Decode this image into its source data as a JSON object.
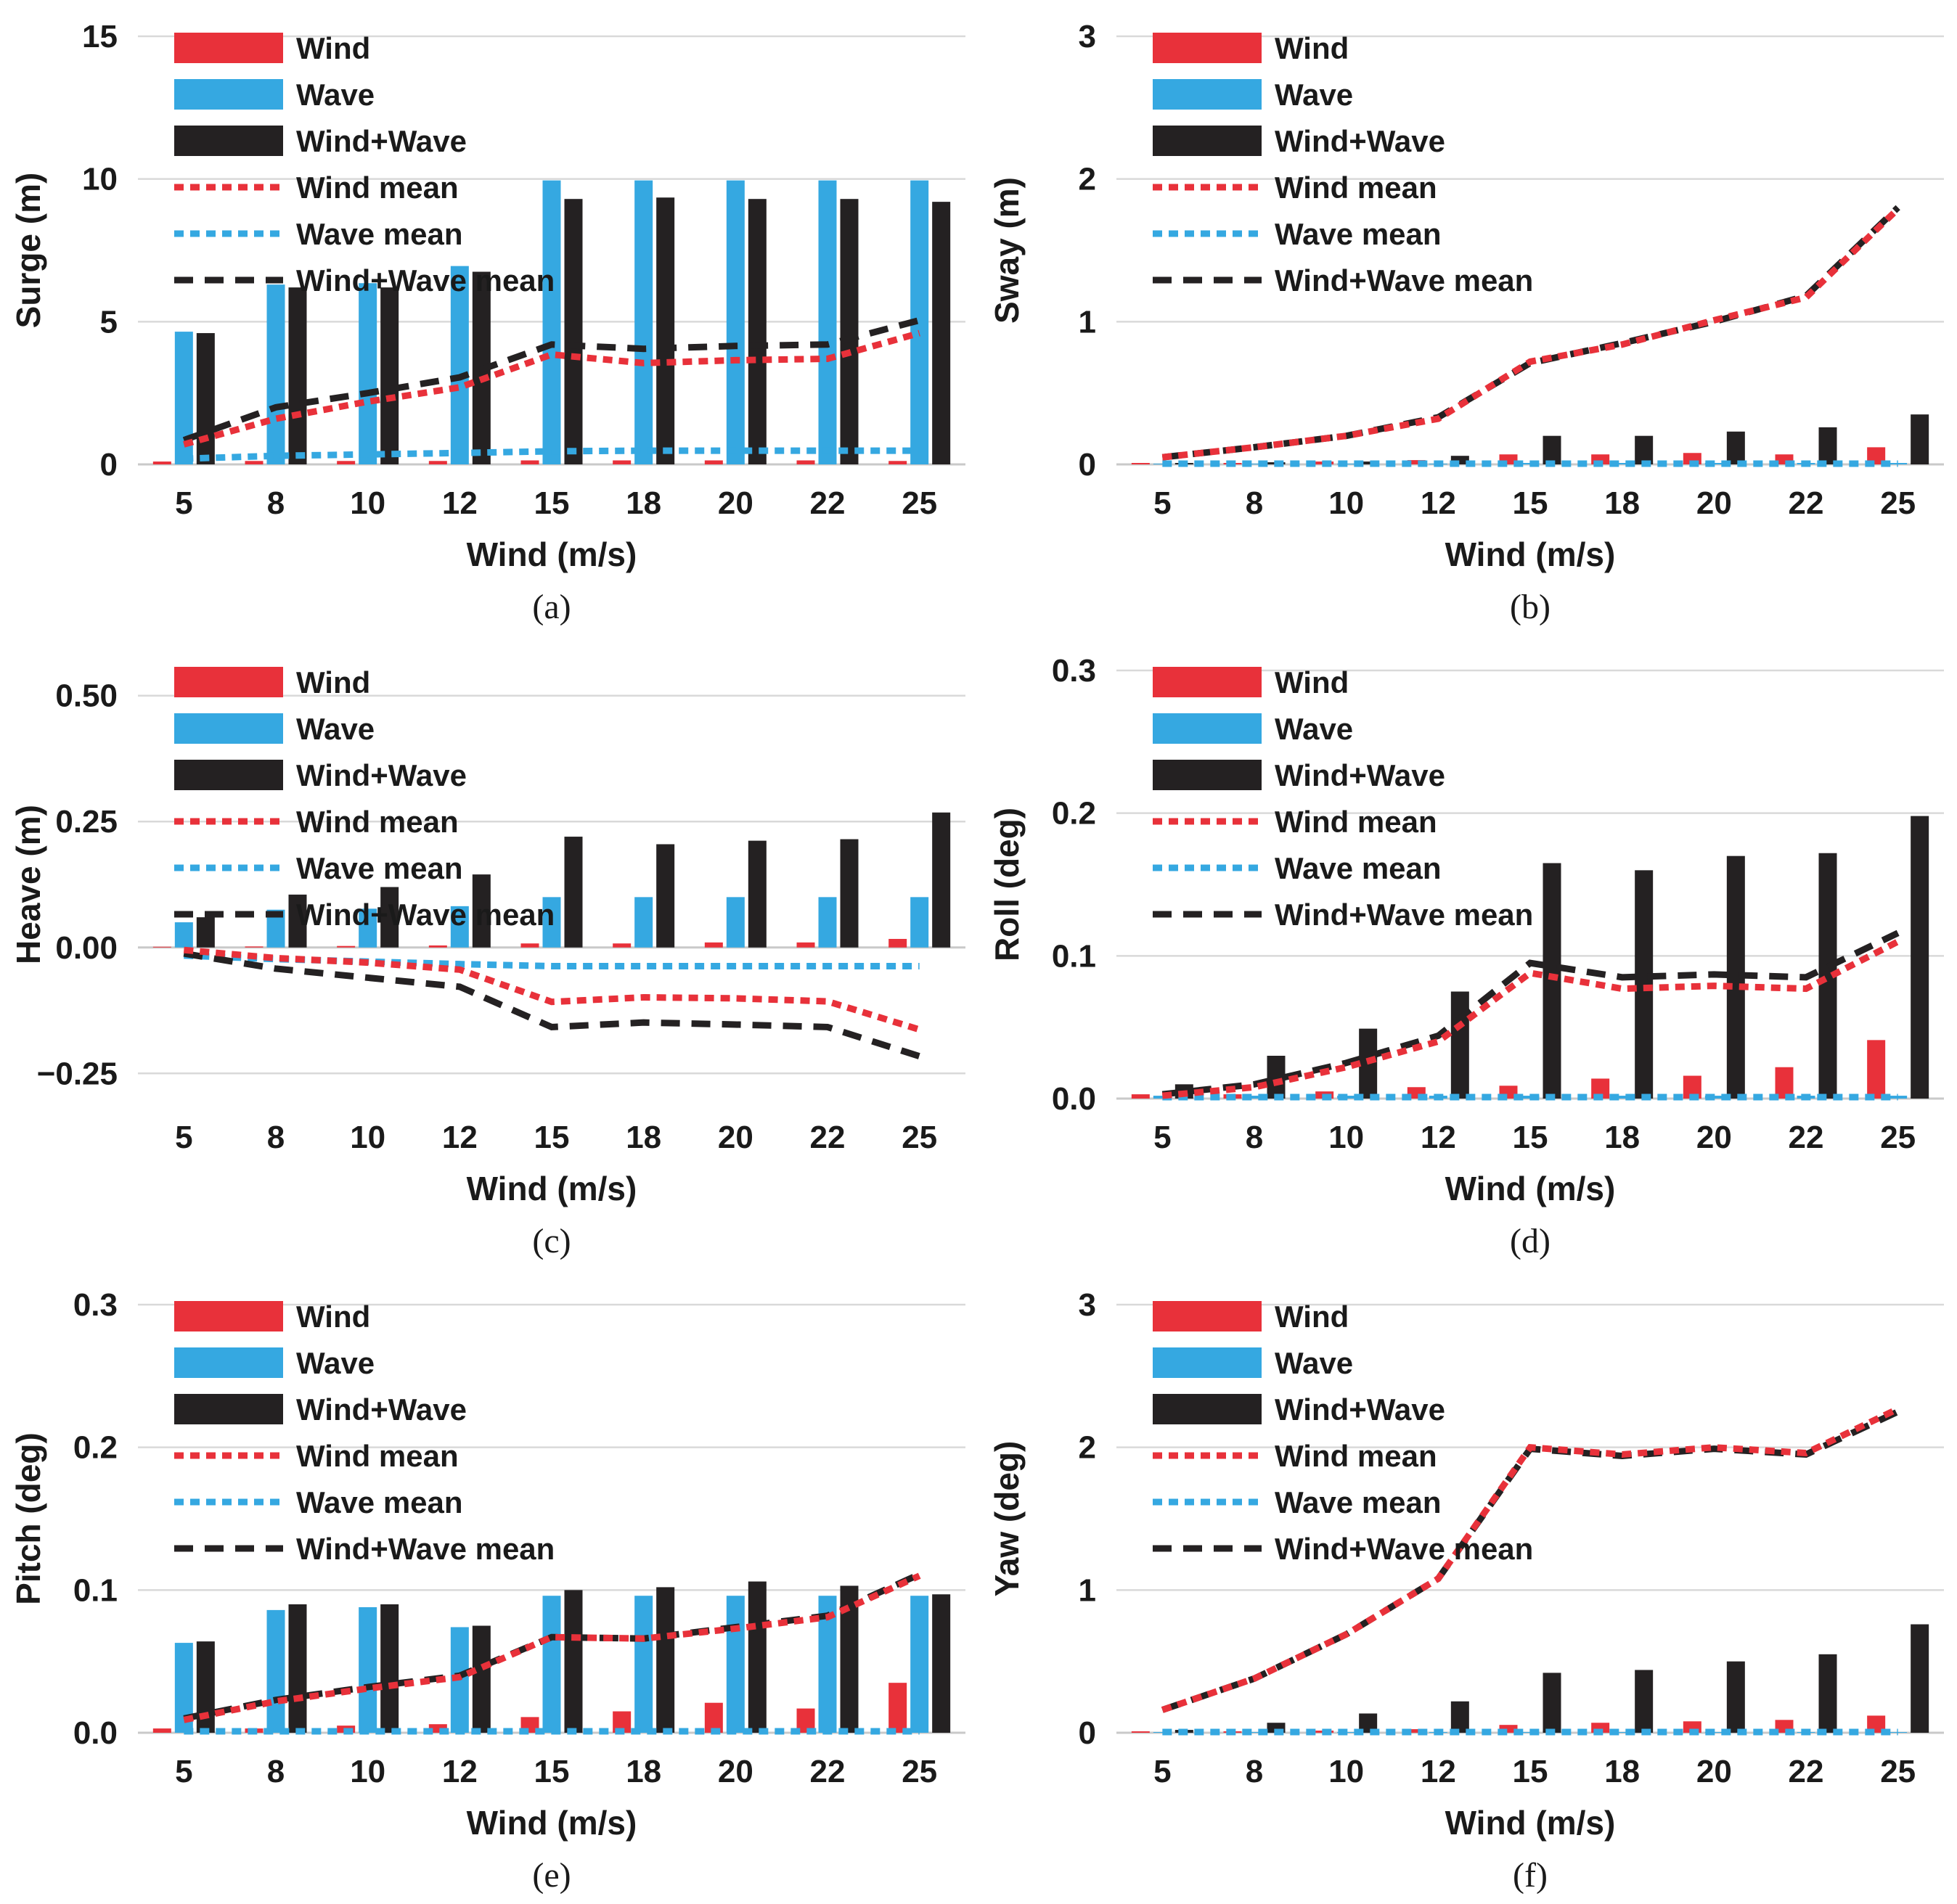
{
  "figure": {
    "x_axis_label": "Wind (m/s)",
    "categories": [
      "5",
      "8",
      "10",
      "12",
      "15",
      "18",
      "20",
      "22",
      "25"
    ],
    "colors": {
      "wind": "#e8313a",
      "wave": "#35a8e1",
      "wind_wave": "#242122",
      "text": "#1a1a1a",
      "grid": "#d9d9d9",
      "baseline": "#c9c9c9",
      "background": "#ffffff"
    },
    "legend": {
      "items": [
        {
          "label": "Wind",
          "series": "wind",
          "type": "bar"
        },
        {
          "label": "Wave",
          "series": "wave",
          "type": "bar"
        },
        {
          "label": "Wind+Wave",
          "series": "wind_wave",
          "type": "bar"
        },
        {
          "label": "Wind mean",
          "series": "wind",
          "type": "line",
          "dash": "13 9"
        },
        {
          "label": "Wave mean",
          "series": "wave",
          "type": "line",
          "dash": "13 9"
        },
        {
          "label": "Wind+Wave mean",
          "series": "wind_wave",
          "type": "line",
          "dash": "26 16"
        }
      ]
    }
  },
  "chart_data": [
    {
      "id": "a",
      "type": "bar+line",
      "caption": "(a)",
      "ylabel": "Surge (m)",
      "xlabel": "Wind (m/s)",
      "categories": [
        "5",
        "8",
        "10",
        "12",
        "15",
        "18",
        "20",
        "22",
        "25"
      ],
      "ylim": [
        0,
        15
      ],
      "yticks": [
        {
          "v": 0,
          "label": "0"
        },
        {
          "v": 5,
          "label": "5"
        },
        {
          "v": 10,
          "label": "10"
        },
        {
          "v": 15,
          "label": "15"
        }
      ],
      "bars": {
        "wind": [
          0.1,
          0.12,
          0.12,
          0.12,
          0.14,
          0.14,
          0.14,
          0.14,
          0.12
        ],
        "wave": [
          4.65,
          6.3,
          6.35,
          6.95,
          9.95,
          9.95,
          9.95,
          9.95,
          9.95
        ],
        "wind_wave": [
          4.6,
          6.2,
          6.2,
          6.75,
          9.3,
          9.35,
          9.3,
          9.3,
          9.2
        ]
      },
      "means": {
        "wind": [
          0.7,
          1.6,
          2.2,
          2.7,
          3.85,
          3.55,
          3.65,
          3.7,
          4.6
        ],
        "wave": [
          0.2,
          0.3,
          0.35,
          0.4,
          0.46,
          0.48,
          0.48,
          0.48,
          0.48
        ],
        "wind_wave": [
          0.85,
          2.0,
          2.5,
          3.05,
          4.2,
          4.05,
          4.15,
          4.2,
          5.05
        ]
      }
    },
    {
      "id": "b",
      "type": "bar+line",
      "caption": "(b)",
      "ylabel": "Sway (m)",
      "xlabel": "Wind (m/s)",
      "categories": [
        "5",
        "8",
        "10",
        "12",
        "15",
        "18",
        "20",
        "22",
        "25"
      ],
      "ylim": [
        0,
        3
      ],
      "yticks": [
        {
          "v": 0,
          "label": "0"
        },
        {
          "v": 1,
          "label": "1"
        },
        {
          "v": 2,
          "label": "2"
        },
        {
          "v": 3,
          "label": "3"
        }
      ],
      "bars": {
        "wind": [
          0.01,
          0.01,
          0.02,
          0.03,
          0.07,
          0.07,
          0.08,
          0.07,
          0.12
        ],
        "wave": [
          0.005,
          0.005,
          0.005,
          0.005,
          0.01,
          0.01,
          0.01,
          0.01,
          0.01
        ],
        "wind_wave": [
          0.01,
          0.015,
          0.02,
          0.06,
          0.2,
          0.2,
          0.23,
          0.26,
          0.35
        ]
      },
      "means": {
        "wind": [
          0.05,
          0.12,
          0.2,
          0.32,
          0.72,
          0.84,
          1.01,
          1.17,
          1.79
        ],
        "wave": [
          0.005,
          0.005,
          0.005,
          0.005,
          0.005,
          0.005,
          0.005,
          0.005,
          0.005
        ],
        "wind_wave": [
          0.05,
          0.12,
          0.2,
          0.33,
          0.71,
          0.85,
          1.0,
          1.18,
          1.8
        ]
      }
    },
    {
      "id": "c",
      "type": "bar+line",
      "caption": "(c)",
      "ylabel": "Heave (m)",
      "xlabel": "Wind (m/s)",
      "categories": [
        "5",
        "8",
        "10",
        "12",
        "15",
        "18",
        "20",
        "22",
        "25"
      ],
      "ylim": [
        -0.3,
        0.55
      ],
      "yticks": [
        {
          "v": -0.25,
          "label": "−0.25"
        },
        {
          "v": 0,
          "label": "0.00"
        },
        {
          "v": 0.25,
          "label": "0.25"
        },
        {
          "v": 0.5,
          "label": "0.50"
        }
      ],
      "bars": {
        "wind": [
          0.001,
          0.002,
          0.003,
          0.004,
          0.008,
          0.008,
          0.01,
          0.01,
          0.017
        ],
        "wave": [
          0.05,
          0.075,
          0.077,
          0.082,
          0.1,
          0.1,
          0.1,
          0.1,
          0.1
        ],
        "wind_wave": [
          0.06,
          0.105,
          0.12,
          0.145,
          0.22,
          0.205,
          0.212,
          0.215,
          0.268
        ]
      },
      "means": {
        "wind": [
          -0.005,
          -0.021,
          -0.03,
          -0.044,
          -0.108,
          -0.099,
          -0.101,
          -0.107,
          -0.163
        ],
        "wave": [
          -0.016,
          -0.023,
          -0.028,
          -0.033,
          -0.037,
          -0.037,
          -0.037,
          -0.037,
          -0.037
        ],
        "wind_wave": [
          -0.012,
          -0.042,
          -0.06,
          -0.078,
          -0.158,
          -0.149,
          -0.153,
          -0.158,
          -0.216
        ]
      }
    },
    {
      "id": "d",
      "type": "bar+line",
      "caption": "(d)",
      "ylabel": "Roll (deg)",
      "xlabel": "Wind (m/s)",
      "categories": [
        "5",
        "8",
        "10",
        "12",
        "15",
        "18",
        "20",
        "22",
        "25"
      ],
      "ylim": [
        0,
        0.3
      ],
      "yticks": [
        {
          "v": 0,
          "label": "0.0"
        },
        {
          "v": 0.1,
          "label": "0.1"
        },
        {
          "v": 0.2,
          "label": "0.2"
        },
        {
          "v": 0.3,
          "label": "0.3"
        }
      ],
      "bars": {
        "wind": [
          0.003,
          0.003,
          0.005,
          0.008,
          0.009,
          0.014,
          0.016,
          0.022,
          0.041
        ],
        "wave": [
          0.002,
          0.002,
          0.002,
          0.002,
          0.002,
          0.002,
          0.002,
          0.002,
          0.002
        ],
        "wind_wave": [
          0.01,
          0.03,
          0.049,
          0.075,
          0.165,
          0.16,
          0.17,
          0.172,
          0.198
        ]
      },
      "means": {
        "wind": [
          0.002,
          0.008,
          0.022,
          0.04,
          0.088,
          0.077,
          0.079,
          0.077,
          0.11
        ],
        "wave": [
          0.001,
          0.001,
          0.001,
          0.001,
          0.001,
          0.001,
          0.001,
          0.001,
          0.001
        ],
        "wind_wave": [
          0.003,
          0.01,
          0.025,
          0.044,
          0.095,
          0.085,
          0.087,
          0.085,
          0.116
        ]
      }
    },
    {
      "id": "e",
      "type": "bar+line",
      "caption": "(e)",
      "ylabel": "Pitch (deg)",
      "xlabel": "Wind (m/s)",
      "categories": [
        "5",
        "8",
        "10",
        "12",
        "15",
        "18",
        "20",
        "22",
        "25"
      ],
      "ylim": [
        0,
        0.3
      ],
      "yticks": [
        {
          "v": 0,
          "label": "0.0"
        },
        {
          "v": 0.1,
          "label": "0.1"
        },
        {
          "v": 0.2,
          "label": "0.2"
        },
        {
          "v": 0.3,
          "label": "0.3"
        }
      ],
      "bars": {
        "wind": [
          0.003,
          0.003,
          0.005,
          0.006,
          0.011,
          0.015,
          0.021,
          0.017,
          0.035
        ],
        "wave": [
          0.063,
          0.086,
          0.088,
          0.074,
          0.096,
          0.096,
          0.096,
          0.096,
          0.096
        ],
        "wind_wave": [
          0.064,
          0.09,
          0.09,
          0.075,
          0.1,
          0.102,
          0.106,
          0.103,
          0.097
        ]
      },
      "means": {
        "wind": [
          0.009,
          0.022,
          0.031,
          0.039,
          0.067,
          0.066,
          0.073,
          0.081,
          0.11
        ],
        "wave": [
          0.001,
          0.001,
          0.001,
          0.001,
          0.001,
          0.001,
          0.001,
          0.001,
          0.001
        ],
        "wind_wave": [
          0.01,
          0.023,
          0.032,
          0.04,
          0.067,
          0.066,
          0.074,
          0.082,
          0.111
        ]
      }
    },
    {
      "id": "f",
      "type": "bar+line",
      "caption": "(f)",
      "ylabel": "Yaw (deg)",
      "xlabel": "Wind (m/s)",
      "categories": [
        "5",
        "8",
        "10",
        "12",
        "15",
        "18",
        "20",
        "22",
        "25"
      ],
      "ylim": [
        0,
        3
      ],
      "yticks": [
        {
          "v": 0,
          "label": "0"
        },
        {
          "v": 1,
          "label": "1"
        },
        {
          "v": 2,
          "label": "2"
        },
        {
          "v": 3,
          "label": "3"
        }
      ],
      "bars": {
        "wind": [
          0.01,
          0.01,
          0.015,
          0.025,
          0.055,
          0.07,
          0.08,
          0.09,
          0.12
        ],
        "wave": [
          0.005,
          0.005,
          0.005,
          0.005,
          0.005,
          0.005,
          0.005,
          0.005,
          0.005
        ],
        "wind_wave": [
          0.02,
          0.07,
          0.135,
          0.22,
          0.42,
          0.44,
          0.5,
          0.55,
          0.76
        ]
      },
      "means": {
        "wind": [
          0.16,
          0.38,
          0.69,
          1.08,
          2.0,
          1.95,
          2.0,
          1.96,
          2.27
        ],
        "wave": [
          0.005,
          0.005,
          0.005,
          0.005,
          0.005,
          0.005,
          0.005,
          0.005,
          0.005
        ],
        "wind_wave": [
          0.16,
          0.38,
          0.69,
          1.08,
          1.99,
          1.94,
          1.99,
          1.95,
          2.25
        ]
      }
    }
  ]
}
